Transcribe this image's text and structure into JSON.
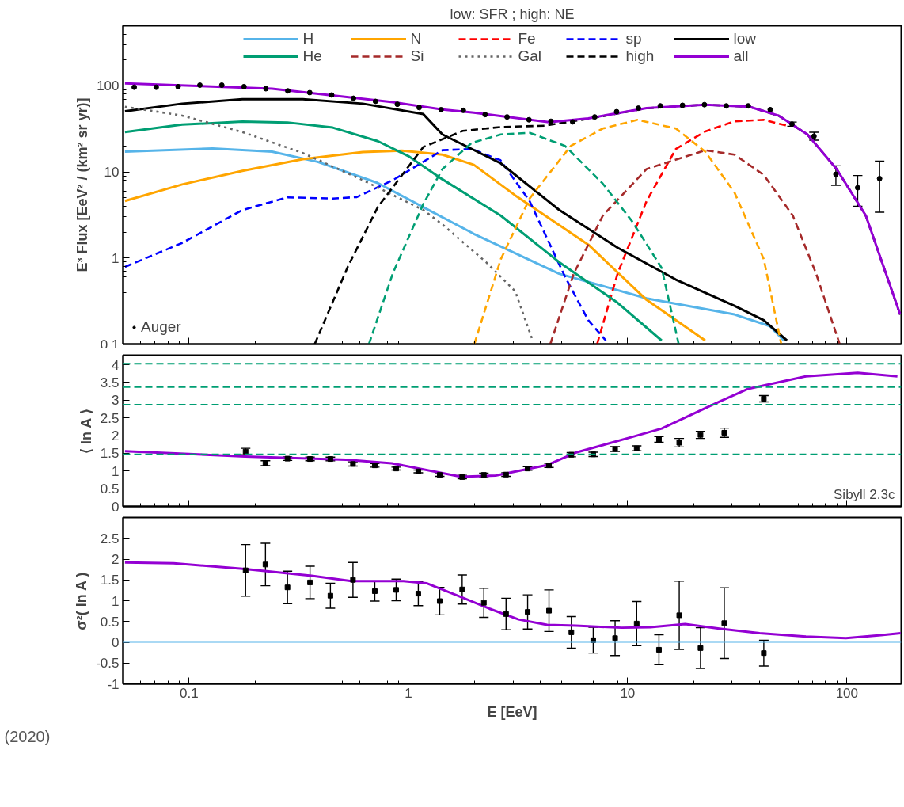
{
  "chart_data": [
    {
      "type": "line",
      "title": "low: SFR ; high: NE",
      "ylabel": "E³ Flux [EeV² / (km² sr yr)]",
      "log": "xy",
      "xlim": [
        0.05,
        177
      ],
      "ylim": [
        0.1,
        500
      ],
      "xticks": [
        0.1,
        1,
        10,
        100
      ],
      "yticks": [
        0.1,
        1,
        10,
        100
      ],
      "tick_labels": "y",
      "legend": "top",
      "grid": false,
      "series": [
        {
          "name": "H",
          "color": "#56b4e9",
          "x": [
            0.051,
            0.128,
            0.239,
            0.386,
            0.724,
            1.17,
            1.99,
            2.88,
            4.87,
            12.2,
            30.7,
            44.5,
            51.6
          ],
          "values": [
            17.2,
            18.7,
            17.2,
            13.1,
            7.46,
            3.9,
            1.91,
            1.23,
            0.658,
            0.34,
            0.221,
            0.162,
            0.11
          ]
        },
        {
          "name": "N",
          "color": "#ffa500",
          "x": [
            0.051,
            0.093,
            0.175,
            0.33,
            0.619,
            0.936,
            1.43,
            1.99,
            3.07,
            6.62,
            12.2,
            22.6
          ],
          "values": [
            4.61,
            7.16,
            10.3,
            14.1,
            17.0,
            17.7,
            15.9,
            12.1,
            5.35,
            1.43,
            0.327,
            0.11
          ]
        },
        {
          "name": "Fe",
          "color": "#ff0000",
          "x": [
            7.26,
            9.0,
            12.2,
            16.6,
            22.6,
            30.7,
            41.8,
            53.3
          ],
          "values": [
            0.1,
            0.658,
            4.58,
            18.5,
            29.6,
            38.8,
            40.3,
            34.5
          ],
          "line_style": "dashed"
        },
        {
          "name": "sp",
          "color": "#0000ff",
          "x": [
            0.051,
            0.093,
            0.175,
            0.281,
            0.452,
            0.582,
            0.851,
            1.43,
            1.94,
            2.63,
            3.57,
            5.18,
            6.62,
            7.96
          ],
          "values": [
            0.789,
            1.5,
            3.61,
            5.07,
            4.91,
            5.11,
            8.05,
            17.9,
            18.5,
            13.7,
            4.61,
            0.608,
            0.189,
            0.11
          ],
          "line_style": "dashed"
        },
        {
          "name": "low",
          "color": "#000000",
          "x": [
            0.051,
            0.093,
            0.175,
            0.33,
            0.619,
            1.17,
            1.43,
            2.64,
            4.87,
            9.0,
            16.6,
            30.7,
            41.8,
            53.3
          ],
          "values": [
            50.8,
            62.2,
            69.9,
            69.9,
            62.2,
            47.0,
            27.3,
            12.6,
            3.63,
            1.32,
            0.562,
            0.279,
            0.189,
            0.11
          ]
        },
        {
          "name": "He",
          "color": "#009e73",
          "x": [
            0.051,
            0.093,
            0.175,
            0.281,
            0.452,
            0.726,
            1.0,
            1.43,
            2.64,
            4.87,
            9.0,
            14.3
          ],
          "values": [
            29.1,
            35.5,
            38.5,
            37.6,
            32.8,
            22.8,
            15.3,
            8.22,
            3.11,
            0.897,
            0.302,
            0.11
          ]
        },
        {
          "name": "Si",
          "color": "#a52a2a",
          "x": [
            4.44,
            5.68,
            7.71,
            12.2,
            22.6,
            30.7,
            41.8,
            56.7,
            72.4,
            92.7
          ],
          "values": [
            0.1,
            0.658,
            3.11,
            10.8,
            17.9,
            15.9,
            9.23,
            3.11,
            0.658,
            0.1
          ],
          "line_style": "dashed"
        },
        {
          "name": "Gal",
          "color": "#666666",
          "x": [
            0.051,
            0.093,
            0.175,
            0.33,
            0.619,
            1.17,
            1.43,
            2.26,
            3.07,
            3.69
          ],
          "values": [
            57.3,
            45.2,
            29.1,
            16.6,
            8.05,
            3.61,
            2.46,
            0.897,
            0.412,
            0.11
          ],
          "line_style": "dotted"
        },
        {
          "name": "high",
          "color": "#000000",
          "x": [
            0.374,
            0.529,
            0.726,
            1.17,
            1.77,
            2.64,
            4.18,
            6.62,
            12.2,
            22.6,
            35.9,
            48.7,
            66.1,
            89.8,
            122,
            175
          ],
          "values": [
            0.1,
            0.789,
            3.92,
            19.5,
            30,
            33.3,
            34.5,
            41.5,
            55,
            60.4,
            57.2,
            45.2,
            27.2,
            10.8,
            3.1,
            0.22
          ],
          "line_style": "dashed"
        },
        {
          "color": "#009e73",
          "x": [
            0.661,
            0.851,
            1.17,
            1.43,
            1.94,
            2.64,
            3.58,
            5.18,
            7.71,
            10.5,
            14.3,
            17.1
          ],
          "values": [
            0.1,
            0.672,
            4.24,
            10.8,
            21.7,
            27.3,
            28.5,
            20.1,
            7.31,
            2.66,
            0.767,
            0.1
          ],
          "line_style": "dashed"
        },
        {
          "color": "#ffa500",
          "x": [
            2.0,
            2.64,
            3.58,
            5.51,
            7.71,
            11.1,
            16.6,
            22.6,
            30.7,
            41.8,
            50.2
          ],
          "values": [
            0.1,
            0.968,
            4.95,
            20.1,
            32,
            40.3,
            32,
            17.2,
            5.8,
            0.968,
            0.1
          ],
          "line_style": "dashed"
        },
        {
          "name": "all",
          "color": "#9400d3",
          "x": [
            0.051,
            0.239,
            0.851,
            1.43,
            1.99,
            4.38,
            6.62,
            12.2,
            22.6,
            35.9,
            48.7,
            66.1,
            89.8,
            122,
            175
          ],
          "values": [
            107,
            92.7,
            64.7,
            53.1,
            48.9,
            37.9,
            42,
            55.1,
            60.5,
            57.3,
            45.3,
            27.3,
            10.8,
            3.11,
            0.221
          ]
        },
        {
          "name": "Auger",
          "type": "scatter",
          "marker": "circle",
          "color": "#000000",
          "x": [
            0.0562,
            0.0708,
            0.0891,
            0.112,
            0.141,
            0.178,
            0.224,
            0.282,
            0.355,
            0.447,
            0.562,
            0.708,
            0.891,
            1.12,
            1.41,
            1.78,
            2.24,
            2.82,
            3.55,
            4.47,
            5.62,
            7.08,
            8.91,
            11.2,
            14.1,
            17.8,
            22.4,
            28.2,
            35.5,
            44.7,
            56.2,
            70.8,
            89.1,
            112,
            141
          ],
          "values": [
            96.5,
            96.5,
            98,
            102,
            102,
            98,
            92.7,
            87.6,
            83.5,
            78.4,
            71.8,
            66.1,
            61.2,
            56,
            52.9,
            52,
            46.4,
            43.6,
            40.4,
            38.8,
            38.2,
            43.6,
            50.1,
            55.1,
            58.6,
            59.5,
            60.5,
            58.6,
            58.6,
            53.0,
            36.0,
            26.0,
            9.39,
            6.55,
            8.38
          ],
          "errors": [
            null,
            null,
            null,
            null,
            null,
            null,
            null,
            null,
            null,
            null,
            null,
            null,
            null,
            null,
            null,
            null,
            null,
            null,
            null,
            null,
            null,
            null,
            null,
            null,
            null,
            null,
            null,
            null,
            null,
            null,
            [
              34,
              38
            ],
            [
              23.4,
              28.9
            ],
            [
              7.0,
              11.8
            ],
            [
              4.0,
              9.1
            ],
            [
              3.4,
              13.4
            ]
          ]
        }
      ]
    },
    {
      "type": "line",
      "ylabel": "⟨ ln A ⟩",
      "log": "x",
      "xlim": [
        0.05,
        177
      ],
      "ylim": [
        0,
        4.27
      ],
      "xticks": [
        0.1,
        1,
        10,
        100
      ],
      "yticks": [
        0,
        0.5,
        1,
        1.5,
        2,
        2.5,
        3,
        3.5,
        4
      ],
      "tick_labels": "y",
      "grid": false,
      "annotations": [
        "Sibyll 2.3c"
      ],
      "ref_lines": [
        {
          "axis": "y",
          "value": 1.47,
          "color": "#009e73",
          "line_style": "dashed"
        },
        {
          "axis": "y",
          "value": 2.87,
          "color": "#009e73",
          "line_style": "dashed"
        },
        {
          "axis": "y",
          "value": 3.37,
          "color": "#009e73",
          "line_style": "dashed"
        },
        {
          "axis": "y",
          "value": 4.03,
          "color": "#009e73",
          "line_style": "dashed"
        }
      ],
      "series": [
        {
          "color": "#9400d3",
          "x": [
            0.051,
            0.18,
            0.52,
            0.84,
            1.74,
            2.5,
            4.3,
            5.8,
            10.6,
            14.3,
            26,
            35.5,
            65,
            112,
            170
          ],
          "values": [
            1.56,
            1.41,
            1.32,
            1.22,
            0.84,
            0.87,
            1.17,
            1.52,
            1.97,
            2.2,
            2.95,
            3.32,
            3.67,
            3.77,
            3.67
          ]
        },
        {
          "type": "scatter",
          "marker": "square",
          "color": "#000000",
          "x": [
            0.181,
            0.223,
            0.281,
            0.356,
            0.441,
            0.559,
            0.703,
            0.88,
            1.11,
            1.39,
            1.76,
            2.21,
            2.79,
            3.5,
            4.38,
            5.54,
            6.97,
            8.77,
            11.0,
            13.9,
            17.2,
            21.5,
            27.6,
            41.8
          ],
          "values": [
            1.55,
            1.22,
            1.35,
            1.34,
            1.34,
            1.2,
            1.16,
            1.07,
            0.99,
            0.89,
            0.83,
            0.89,
            0.9,
            1.07,
            1.16,
            1.46,
            1.47,
            1.62,
            1.64,
            1.89,
            1.8,
            2.02,
            2.08,
            3.04
          ],
          "errors": [
            0.09,
            0.07,
            0.05,
            0.05,
            0.05,
            0.06,
            0.05,
            0.04,
            0.04,
            0.04,
            0.05,
            0.05,
            0.05,
            0.05,
            0.06,
            0.06,
            0.06,
            0.07,
            0.07,
            0.08,
            0.12,
            0.1,
            0.13,
            0.09
          ]
        }
      ]
    },
    {
      "type": "line",
      "ylabel": "σ²( ln A )",
      "xlabel": "E [EeV]",
      "log": "x",
      "xlim": [
        0.05,
        177
      ],
      "ylim": [
        -1,
        3
      ],
      "xticks": [
        0.1,
        1,
        10,
        100
      ],
      "yticks": [
        -1,
        -0.5,
        0,
        0.5,
        1,
        1.5,
        2,
        2.5
      ],
      "grid": false,
      "annotations": [
        "(2020)"
      ],
      "ref_lines": [
        {
          "axis": "y",
          "value": 0,
          "color": "#56b4e9",
          "line_style": "solid"
        }
      ],
      "series": [
        {
          "color": "#9400d3",
          "x": [
            0.051,
            0.085,
            0.18,
            0.362,
            0.55,
            0.95,
            1.21,
            1.74,
            2.34,
            3.18,
            4.3,
            5.8,
            9.4,
            12.7,
            18.3,
            26.2,
            40,
            65,
            99,
            143,
            176
          ],
          "values": [
            1.92,
            1.9,
            1.76,
            1.6,
            1.47,
            1.47,
            1.42,
            1.09,
            0.81,
            0.55,
            0.42,
            0.4,
            0.35,
            0.36,
            0.44,
            0.33,
            0.22,
            0.14,
            0.1,
            0.17,
            0.22
          ]
        },
        {
          "type": "scatter",
          "marker": "square",
          "color": "#000000",
          "x": [
            0.181,
            0.223,
            0.281,
            0.356,
            0.441,
            0.559,
            0.703,
            0.88,
            1.11,
            1.39,
            1.76,
            2.21,
            2.79,
            3.5,
            4.38,
            5.54,
            6.97,
            8.77,
            11.0,
            13.9,
            17.2,
            21.5,
            27.6,
            41.8
          ],
          "values": [
            1.73,
            1.87,
            1.32,
            1.44,
            1.12,
            1.5,
            1.23,
            1.26,
            1.17,
            0.99,
            1.27,
            0.95,
            0.68,
            0.73,
            0.76,
            0.24,
            0.05,
            0.1,
            0.45,
            -0.18,
            0.65,
            -0.14,
            0.46,
            -0.26
          ],
          "errors": [
            0.62,
            0.51,
            0.39,
            0.39,
            0.3,
            0.42,
            0.24,
            0.26,
            0.29,
            0.33,
            0.35,
            0.35,
            0.38,
            0.41,
            0.5,
            0.38,
            0.31,
            0.42,
            0.53,
            0.36,
            0.82,
            0.49,
            0.85,
            0.31
          ]
        }
      ]
    }
  ]
}
